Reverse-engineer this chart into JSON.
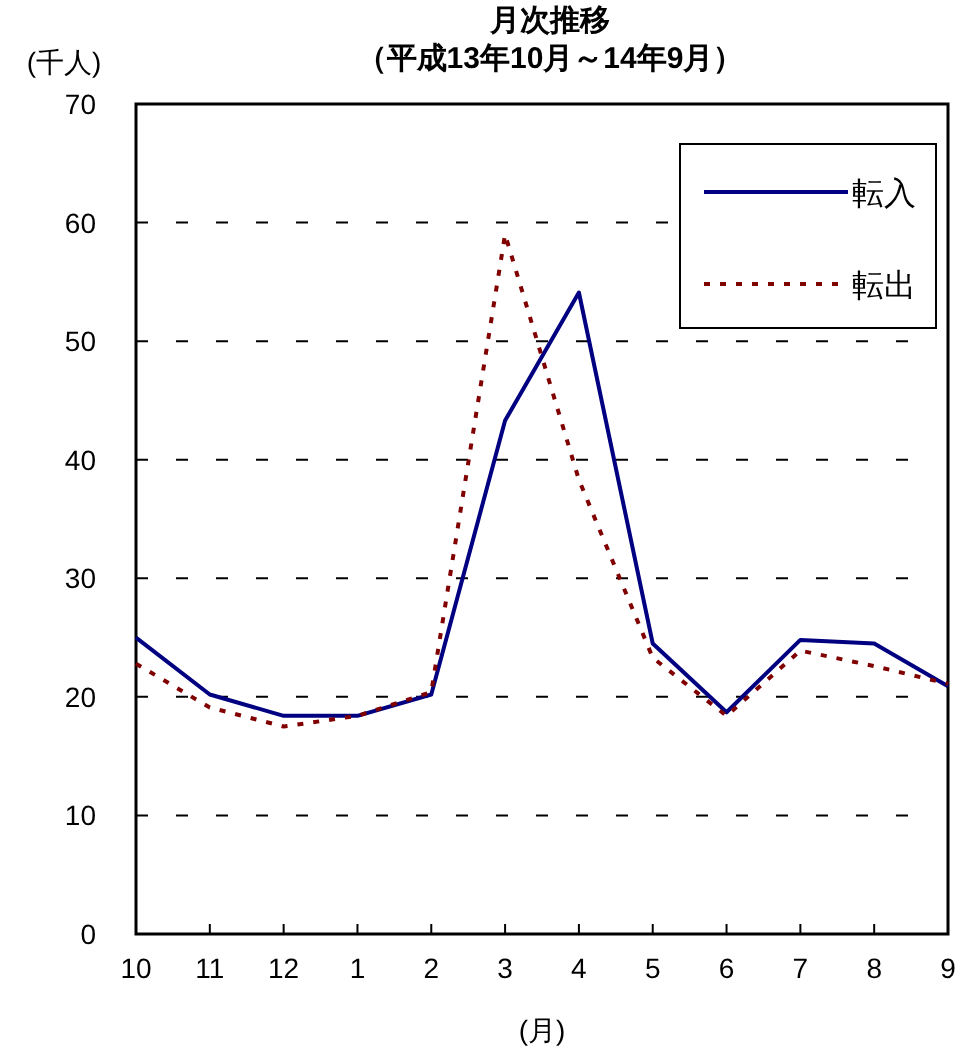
{
  "chart_data": {
    "type": "line",
    "title": "月次推移",
    "subtitle": "（平成13年10月～14年9月）",
    "ylabel": "(千人)",
    "xlabel": "(月)",
    "categories": [
      "10",
      "11",
      "12",
      "1",
      "2",
      "3",
      "4",
      "5",
      "6",
      "7",
      "8",
      "9"
    ],
    "series": [
      {
        "name": "転入",
        "color": "#000080",
        "line_style": "solid",
        "values": [
          25.0,
          20.2,
          18.4,
          18.4,
          20.2,
          43.3,
          54.1,
          24.5,
          18.7,
          24.8,
          24.5,
          20.9
        ]
      },
      {
        "name": "転出",
        "color": "#800000",
        "line_style": "dotted",
        "values": [
          22.8,
          19.1,
          17.5,
          18.4,
          20.4,
          59.0,
          38.3,
          23.3,
          18.4,
          23.9,
          22.6,
          21.1
        ]
      }
    ],
    "ylim": [
      0,
      70
    ],
    "yticks": [
      0,
      10,
      20,
      30,
      40,
      50,
      60,
      70
    ],
    "grid": "y",
    "legend": "top right",
    "marker": "none"
  }
}
